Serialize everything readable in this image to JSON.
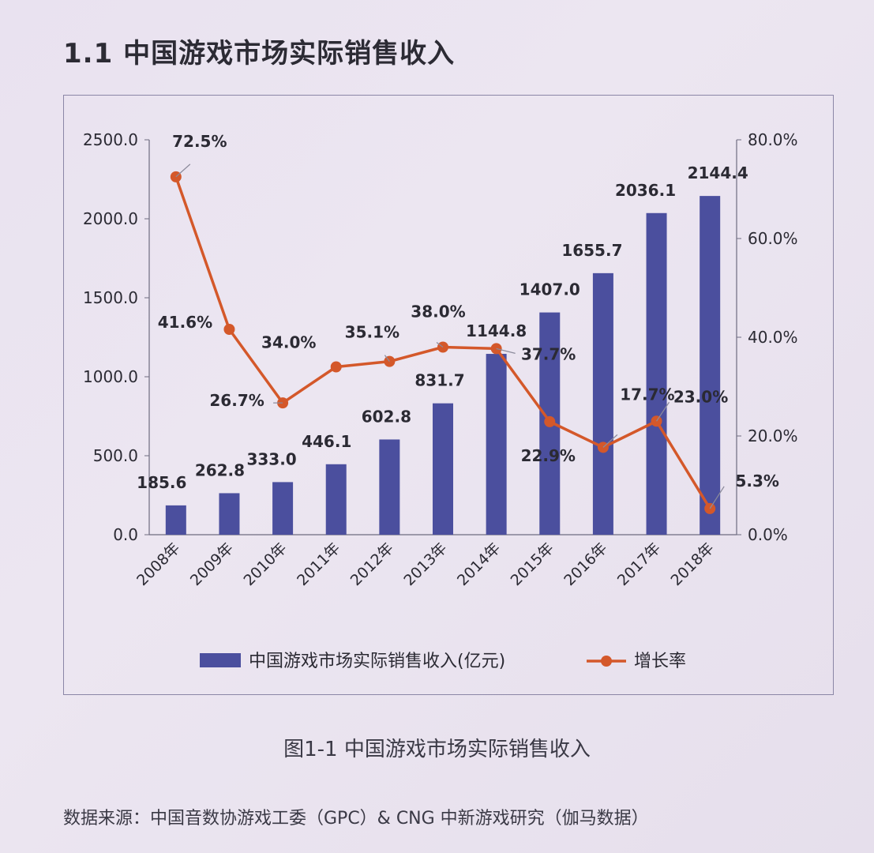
{
  "heading": "1.1  中国游戏市场实际销售收入",
  "caption": "图1-1  中国游戏市场实际销售收入",
  "source": "数据来源：中国音数协游戏工委（GPC）& CNG 中新游戏研究（伽马数据）",
  "colors": {
    "bar": "#4b4f9e",
    "line": "#d4582a",
    "text": "#2b2a33",
    "axis": "#6e6c80"
  },
  "chart_data": {
    "type": "bar",
    "categories": [
      "2008年",
      "2009年",
      "2010年",
      "2011年",
      "2012年",
      "2013年",
      "2014年",
      "2015年",
      "2016年",
      "2017年",
      "2018年"
    ],
    "series": [
      {
        "name": "中国游戏市场实际销售收入(亿元)",
        "type": "bar",
        "axis": "left",
        "values": [
          185.6,
          262.8,
          333.0,
          446.1,
          602.8,
          831.7,
          1144.8,
          1407.0,
          1655.7,
          2036.1,
          2144.4
        ],
        "labels": [
          "185.6",
          "262.8",
          "333.0",
          "446.1",
          "602.8",
          "831.7",
          "1144.8",
          "1407.0",
          "1655.7",
          "2036.1",
          "2144.4"
        ]
      },
      {
        "name": "增长率",
        "type": "line",
        "axis": "right",
        "values": [
          72.5,
          41.6,
          26.7,
          34.0,
          35.1,
          38.0,
          37.7,
          22.9,
          17.7,
          23.0,
          5.3
        ],
        "labels": [
          "72.5%",
          "41.6%",
          "26.7%",
          "34.0%",
          "35.1%",
          "38.0%",
          "37.7%",
          "22.9%",
          "17.7%",
          "23.0%",
          "5.3%"
        ]
      }
    ],
    "y_left": {
      "ylim": [
        0,
        2500
      ],
      "ticks": [
        "0.0",
        "500.0",
        "1000.0",
        "1500.0",
        "2000.0",
        "2500.0"
      ]
    },
    "y_right": {
      "ylim": [
        0,
        80
      ],
      "ticks": [
        "0.0%",
        "20.0%",
        "40.0%",
        "60.0%",
        "80.0%"
      ]
    },
    "grid": false,
    "legend_position": "bottom"
  }
}
